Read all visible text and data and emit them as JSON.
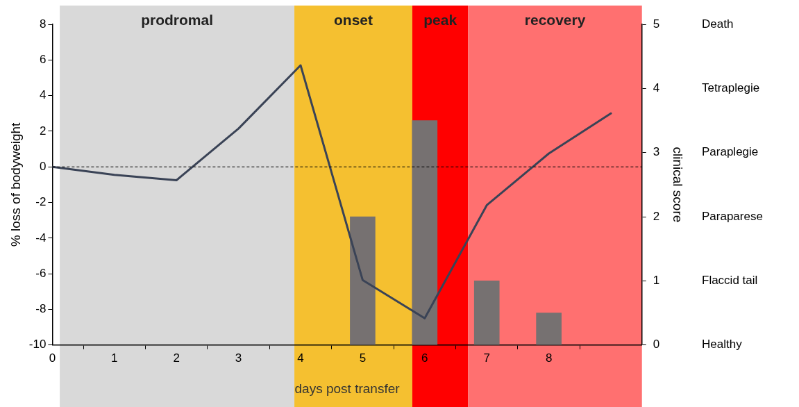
{
  "chart_data": {
    "type": "line",
    "xlabel": "days post transfer",
    "ylabel": "% loss of bodyweight",
    "y2label": "clinical score",
    "x": [
      0,
      1,
      2,
      3,
      4,
      5,
      6,
      7,
      8,
      9
    ],
    "series": [
      {
        "color": "#3a4356",
        "values": [
          0,
          -0.45,
          -0.75,
          2.15,
          5.7,
          -6.35,
          -8.5,
          -2.15,
          0.75,
          3.0
        ]
      },
      {
        "type": "bar",
        "axis": "y2",
        "color": "#767171",
        "x": [
          5,
          6,
          7,
          8
        ],
        "values": [
          2.0,
          3.5,
          1.0,
          0.5
        ]
      }
    ],
    "xlim": [
      0,
      9.5
    ],
    "xticks": [
      0,
      1,
      2,
      3,
      4,
      5,
      6,
      7,
      8
    ],
    "ylim": [
      -10,
      8
    ],
    "yticks": [
      -10,
      -8,
      -6,
      -4,
      -2,
      0,
      2,
      4,
      6,
      8
    ],
    "y2lim": [
      0,
      5
    ],
    "y2ticks": [
      0,
      1,
      2,
      3,
      4,
      5
    ],
    "annotations": [
      "Death",
      "Tetraplegie",
      "Paraplegie",
      "Paraparese",
      "Flaccid tail",
      "Healthy"
    ],
    "ref_lines": [
      {
        "axis": "y",
        "value": 0,
        "color": "#000000",
        "line_style": "dashed"
      }
    ],
    "bands": [
      {
        "axis": "x",
        "from": 0.12,
        "to": 3.9,
        "label": "prodromal",
        "color": "#d9d9d9"
      },
      {
        "axis": "x",
        "from": 3.9,
        "to": 5.8,
        "label": "onset",
        "color": "#f5c030"
      },
      {
        "axis": "x",
        "from": 5.8,
        "to": 6.7,
        "label": "peak",
        "color": "#ff0000"
      },
      {
        "axis": "x",
        "from": 6.7,
        "to": 9.5,
        "label": "recovery",
        "color": "#ff7070"
      }
    ],
    "grid": false,
    "legend": false,
    "marker": "none"
  }
}
